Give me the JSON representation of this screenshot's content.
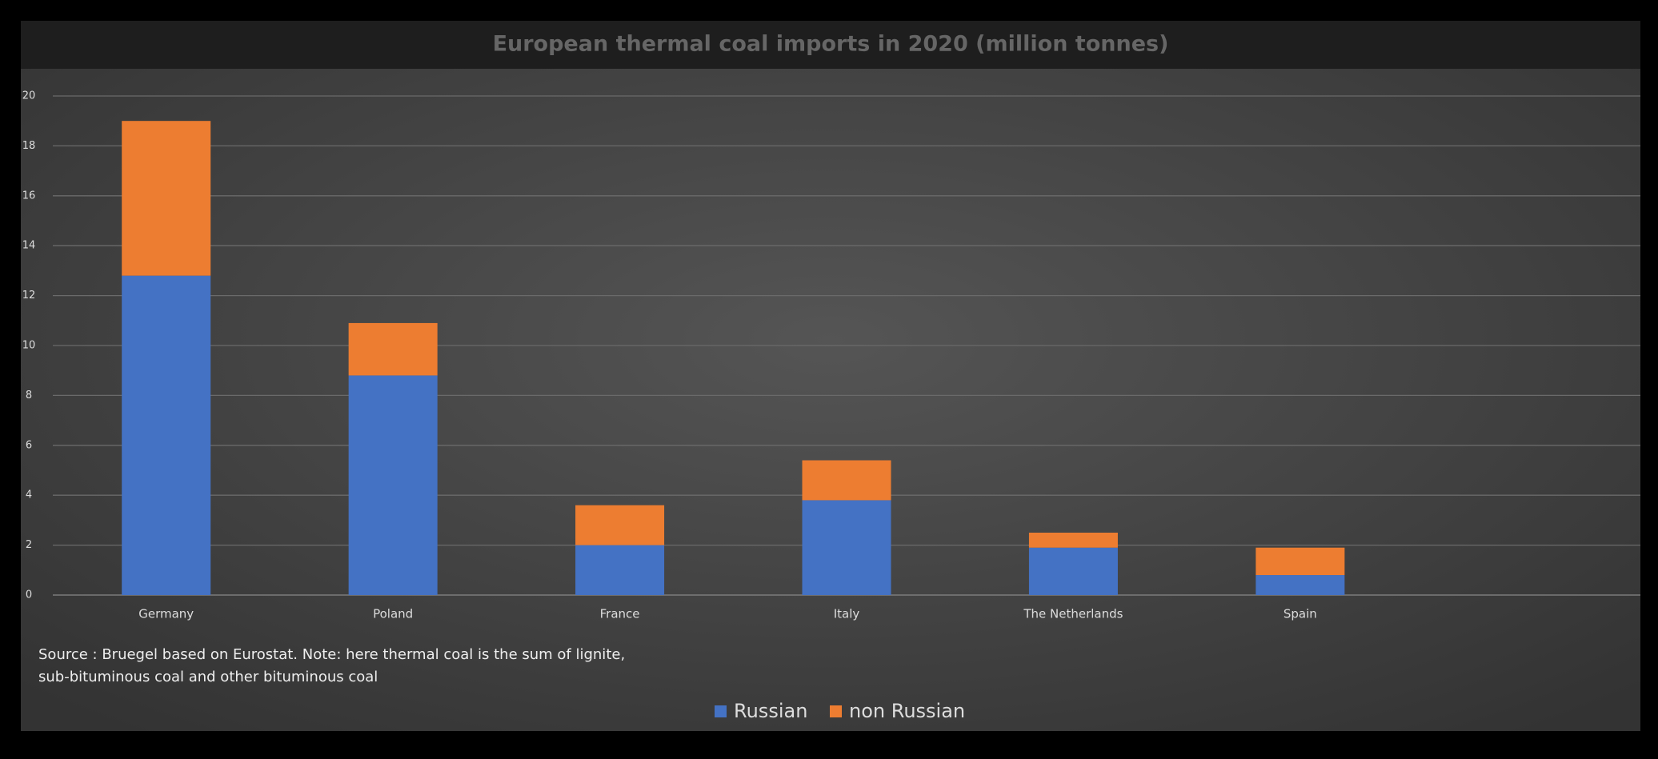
{
  "chart_data": {
    "type": "stacked_bar",
    "title": "European thermal coal imports in 2020 (million tonnes)",
    "categories": [
      "Germany",
      "Poland",
      "France",
      "Italy",
      "The Netherlands",
      "Spain"
    ],
    "series": [
      {
        "name": "Russian",
        "color": "#4472c4",
        "values": [
          12.8,
          8.8,
          2.0,
          3.8,
          1.9,
          0.8
        ]
      },
      {
        "name": "non Russian",
        "color": "#ed7d31",
        "values": [
          6.2,
          2.1,
          1.6,
          1.6,
          0.6,
          1.1
        ]
      }
    ],
    "ylim": [
      0,
      20
    ],
    "yticks": [
      0,
      2,
      4,
      6,
      8,
      10,
      12,
      14,
      16,
      18,
      20
    ],
    "grid": true,
    "note": [
      "Source : Bruegel based on Eurostat. Note: here thermal coal is the sum of lignite,",
      "sub-bituminous coal and other bituminous coal"
    ],
    "legend": "bottom"
  }
}
